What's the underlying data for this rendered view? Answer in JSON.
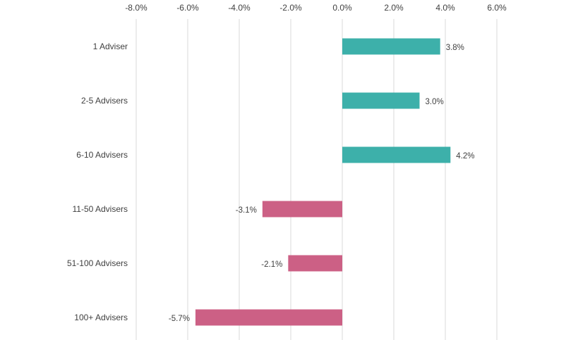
{
  "chart_data": {
    "type": "bar",
    "orientation": "horizontal",
    "title": "",
    "xlabel": "",
    "ylabel": "",
    "categories": [
      "1 Adviser",
      "2-5 Advisers",
      "6-10 Advisers",
      "11-50 Advisers",
      "51-100 Advisers",
      "100+ Advisers"
    ],
    "values": [
      3.8,
      3.0,
      4.2,
      -3.1,
      -2.1,
      -5.7
    ],
    "value_labels": [
      "3.8%",
      "3.0%",
      "4.2%",
      "-3.1%",
      "-2.1%",
      "-5.7%"
    ],
    "xlim": [
      -8,
      6
    ],
    "xticks": [
      -8,
      -6,
      -4,
      -2,
      0,
      2,
      4,
      6
    ],
    "xtick_labels": [
      "-8.0%",
      "-6.0%",
      "-4.0%",
      "-2.0%",
      "0.0%",
      "2.0%",
      "4.0%",
      "6.0%"
    ],
    "x_axis_position": "top",
    "grid": true,
    "legend": "none",
    "colors": {
      "positive": "#3db0aa",
      "negative": "#cc6085",
      "grid": "#d9d9d9",
      "text": "#404040"
    }
  }
}
